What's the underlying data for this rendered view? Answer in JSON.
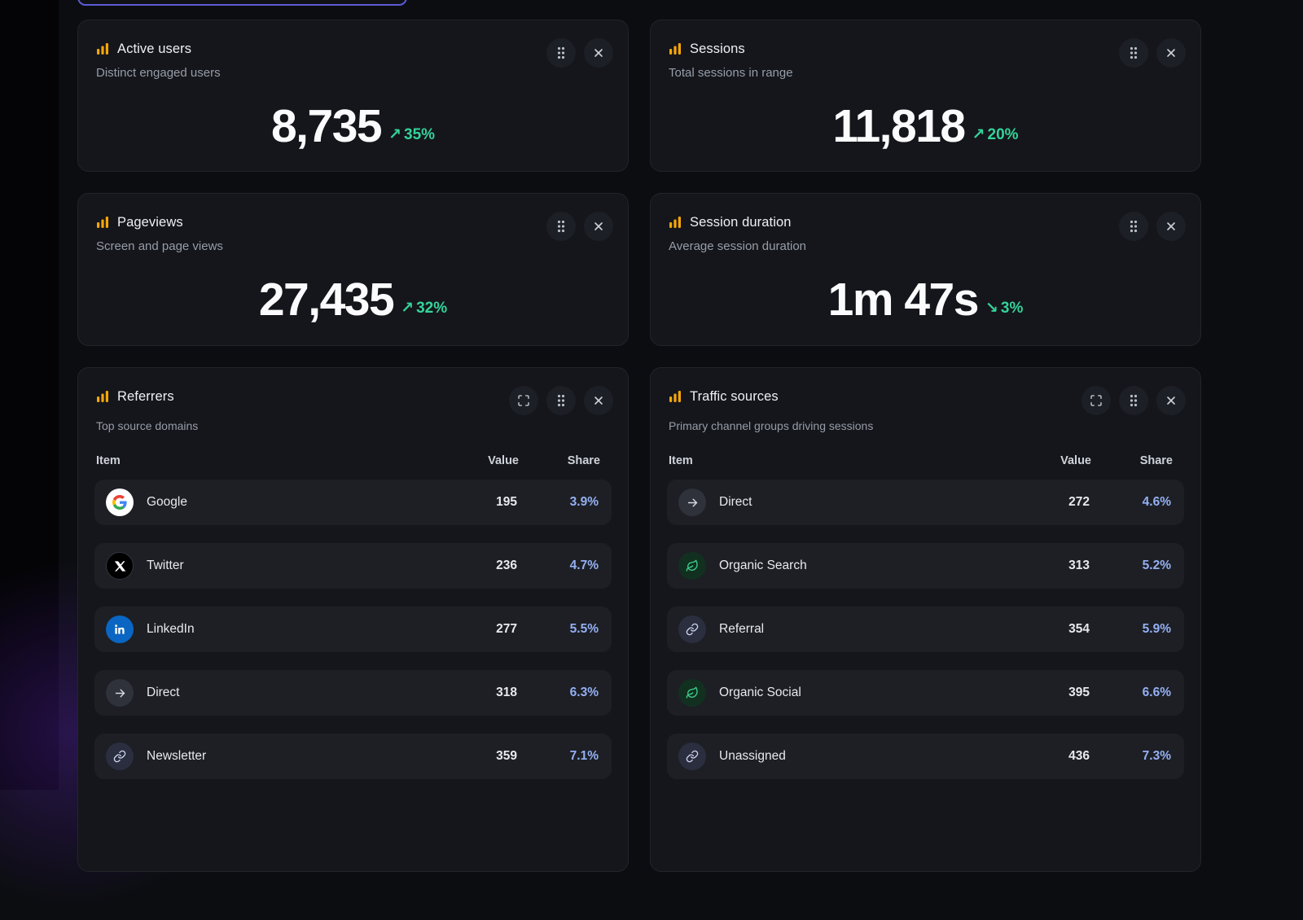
{
  "colors": {
    "accent": "#5b5bd6",
    "positive": "#34d399",
    "share": "#94b0f2",
    "brand": "#f6a609"
  },
  "stat_cards": [
    {
      "title": "Active users",
      "subtitle": "Distinct engaged users",
      "value": "8,735",
      "arrow": "↗",
      "delta": "35%",
      "trend": "up"
    },
    {
      "title": "Sessions",
      "subtitle": "Total sessions in range",
      "value": "11,818",
      "arrow": "↗",
      "delta": "20%",
      "trend": "up"
    },
    {
      "title": "Pageviews",
      "subtitle": "Screen and page views",
      "value": "27,435",
      "arrow": "↗",
      "delta": "32%",
      "trend": "up"
    },
    {
      "title": "Session duration",
      "subtitle": "Average session duration",
      "value": "1m 47s",
      "arrow": "↘",
      "delta": "3%",
      "trend": "down"
    }
  ],
  "lists": [
    {
      "title": "Referrers",
      "subtitle": "Top source domains",
      "columns": {
        "item": "Item",
        "value": "Value",
        "share": "Share"
      },
      "rows": [
        {
          "label": "Google",
          "icon": "google",
          "value": "195",
          "share": "3.9%"
        },
        {
          "label": "Twitter",
          "icon": "twitter",
          "value": "236",
          "share": "4.7%"
        },
        {
          "label": "LinkedIn",
          "icon": "linkedin",
          "value": "277",
          "share": "5.5%"
        },
        {
          "label": "Direct",
          "icon": "direct",
          "value": "318",
          "share": "6.3%"
        },
        {
          "label": "Newsletter",
          "icon": "link",
          "value": "359",
          "share": "7.1%"
        }
      ]
    },
    {
      "title": "Traffic sources",
      "subtitle": "Primary channel groups driving sessions",
      "columns": {
        "item": "Item",
        "value": "Value",
        "share": "Share"
      },
      "rows": [
        {
          "label": "Direct",
          "icon": "direct",
          "value": "272",
          "share": "4.6%"
        },
        {
          "label": "Organic Search",
          "icon": "organic",
          "value": "313",
          "share": "5.2%"
        },
        {
          "label": "Referral",
          "icon": "link",
          "value": "354",
          "share": "5.9%"
        },
        {
          "label": "Organic Social",
          "icon": "organic",
          "value": "395",
          "share": "6.6%"
        },
        {
          "label": "Unassigned",
          "icon": "link",
          "value": "436",
          "share": "7.3%"
        }
      ]
    }
  ]
}
